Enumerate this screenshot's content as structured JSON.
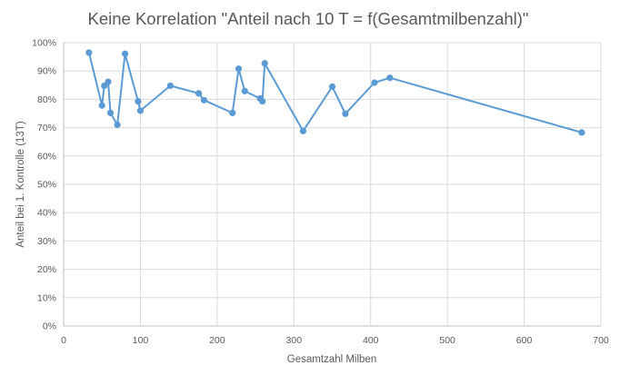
{
  "chart_data": {
    "type": "line",
    "title": "Keine Korrelation \"Anteil nach 10 T = f(Gesamtmilbenzahl)\"",
    "xlabel": "Gesamtzahl Milben",
    "ylabel": "Anteil bei 1. Kontrolle (13T)",
    "xlim": [
      0,
      700
    ],
    "ylim": [
      0,
      1
    ],
    "x_ticks": [
      "0",
      "100",
      "200",
      "300",
      "400",
      "500",
      "600",
      "700"
    ],
    "y_ticks": [
      "0%",
      "10%",
      "20%",
      "30%",
      "40%",
      "50%",
      "60%",
      "70%",
      "80%",
      "90%",
      "100%"
    ],
    "grid": true,
    "legend": "none",
    "series": [
      {
        "color": "#5b9bd5",
        "points": [
          {
            "x": 33,
            "y": 0.965
          },
          {
            "x": 50,
            "y": 0.778
          },
          {
            "x": 53,
            "y": 0.848
          },
          {
            "x": 58,
            "y": 0.862
          },
          {
            "x": 61,
            "y": 0.752
          },
          {
            "x": 70,
            "y": 0.71
          },
          {
            "x": 80,
            "y": 0.961
          },
          {
            "x": 97,
            "y": 0.793
          },
          {
            "x": 100,
            "y": 0.76
          },
          {
            "x": 139,
            "y": 0.848
          },
          {
            "x": 176,
            "y": 0.821
          },
          {
            "x": 183,
            "y": 0.797
          },
          {
            "x": 220,
            "y": 0.752
          },
          {
            "x": 228,
            "y": 0.908
          },
          {
            "x": 236,
            "y": 0.829
          },
          {
            "x": 256,
            "y": 0.803
          },
          {
            "x": 259,
            "y": 0.793
          },
          {
            "x": 262,
            "y": 0.927
          },
          {
            "x": 312,
            "y": 0.688
          },
          {
            "x": 350,
            "y": 0.845
          },
          {
            "x": 367,
            "y": 0.749
          },
          {
            "x": 405,
            "y": 0.859
          },
          {
            "x": 425,
            "y": 0.876
          },
          {
            "x": 675,
            "y": 0.683
          }
        ]
      }
    ]
  }
}
